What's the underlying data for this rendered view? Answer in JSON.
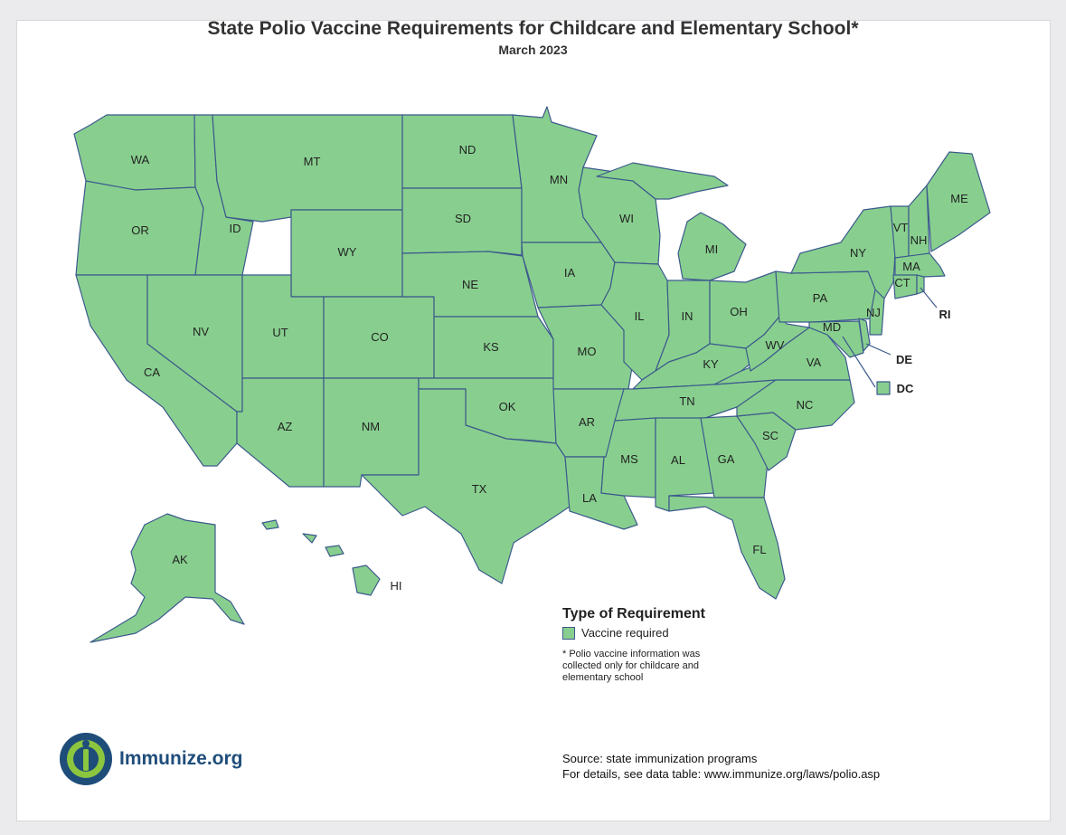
{
  "title": "State Polio Vaccine Requirements for Childcare and Elementary School*",
  "subtitle": "March 2023",
  "colors": {
    "vaccine_required": "#88cf8f",
    "border": "#3c5a8c",
    "brand_blue": "#1f4d7a",
    "brand_green": "#8cc63f"
  },
  "states": {
    "WA": "WA",
    "OR": "OR",
    "CA": "CA",
    "ID": "ID",
    "NV": "NV",
    "MT": "MT",
    "WY": "WY",
    "UT": "UT",
    "AZ": "AZ",
    "CO": "CO",
    "NM": "NM",
    "ND": "ND",
    "SD": "SD",
    "NE": "NE",
    "KS": "KS",
    "OK": "OK",
    "TX": "TX",
    "MN": "MN",
    "IA": "IA",
    "MO": "MO",
    "AR": "AR",
    "LA": "LA",
    "WI": "WI",
    "IL": "IL",
    "MI": "MI",
    "IN": "IN",
    "OH": "OH",
    "KY": "KY",
    "TN": "TN",
    "MS": "MS",
    "AL": "AL",
    "GA": "GA",
    "FL": "FL",
    "SC": "SC",
    "NC": "NC",
    "VA": "VA",
    "WV": "WV",
    "PA": "PA",
    "NY": "NY",
    "VT": "VT",
    "NH": "NH",
    "ME": "ME",
    "MA": "MA",
    "CT": "CT",
    "RI": "RI",
    "NJ": "NJ",
    "DE": "DE",
    "MD": "MD",
    "DC": "DC",
    "AK": "AK",
    "HI": "HI"
  },
  "legend": {
    "title": "Type of Requirement",
    "items": [
      {
        "label": "Vaccine required"
      }
    ],
    "footnote": "* Polio vaccine information was collected only for childcare and elementary school"
  },
  "logo_text": "Immunize.org",
  "source": {
    "line1": "Source: state immunization programs",
    "line2": "For details, see data table: www.immunize.org/laws/polio.asp"
  }
}
